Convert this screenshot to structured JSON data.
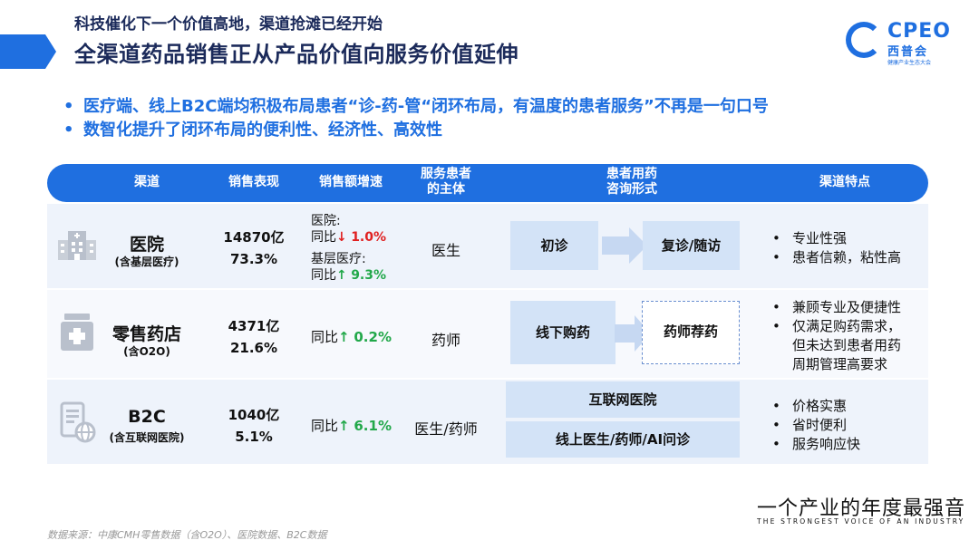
{
  "header": {
    "subtitle": "科技催化下一个价值高地，渠道抢滩已经开始",
    "title": "全渠道药品销售正从产品价值向服务价值延伸",
    "accent_color": "#1f6fe0"
  },
  "logo": {
    "text": "CPEO",
    "cn": "西普会",
    "small": "健康产业生态大会"
  },
  "bullets": [
    "医疗端、线上B2C端均积极布局患者“诊-药-管“闭环布局，有温度的患者服务”不再是一句口号",
    "数智化提升了闭环布局的便利性、经济性、高效性"
  ],
  "table": {
    "headers": {
      "channel": "渠道",
      "sales": "销售表现",
      "growth": "销售额增速",
      "subject_l1": "服务患者",
      "subject_l2": "的主体",
      "consult_l1": "患者用药",
      "consult_l2": "咨询形式",
      "features": "渠道特点"
    },
    "rows": [
      {
        "icon": "hospital-icon",
        "name": "医院",
        "sub": "(含基层医疗)",
        "amount": "14870亿",
        "share": "73.3%",
        "growth_a_label": "医院:",
        "growth_a_prefix": "同比",
        "growth_a_arrow": "↓",
        "growth_a_value": "1.0%",
        "growth_b_label": "基层医疗:",
        "growth_b_prefix": "同比",
        "growth_b_arrow": "↑",
        "growth_b_value": "9.3%",
        "subject": "医生",
        "box1": "初诊",
        "box2": "复诊/随访",
        "features": [
          "专业性强",
          "患者信赖，粘性高"
        ]
      },
      {
        "icon": "pharmacy-icon",
        "name": "零售药店",
        "sub": "(含O2O)",
        "amount": "4371亿",
        "share": "21.6%",
        "growth_prefix": "同比",
        "growth_arrow": "↑",
        "growth_value": "0.2%",
        "subject": "药师",
        "box1": "线下购药",
        "box2": "药师荐药",
        "features": [
          "兼顾专业及便捷性",
          "仅满足购药需求，",
          "但未达到患者用药",
          "周期管理高要求"
        ]
      },
      {
        "icon": "b2c-icon",
        "name": "B2C",
        "sub": "(含互联网医院)",
        "amount": "1040亿",
        "share": "5.1%",
        "growth_prefix": "同比",
        "growth_arrow": "↑",
        "growth_value": "6.1%",
        "subject": "医生/药师",
        "box1": "互联网医院",
        "box2": "线上医生/药师/AI问诊",
        "features": [
          "价格实惠",
          "省时便利",
          "服务响应快"
        ]
      }
    ]
  },
  "footer": {
    "slogan": "一个产业的年度最强音",
    "slogan_en": "THE STRONGEST VOICE OF AN INDUSTRY",
    "source": "数据来源：中康CMH零售数据（含O2O）、医院数据、B2C数据"
  }
}
